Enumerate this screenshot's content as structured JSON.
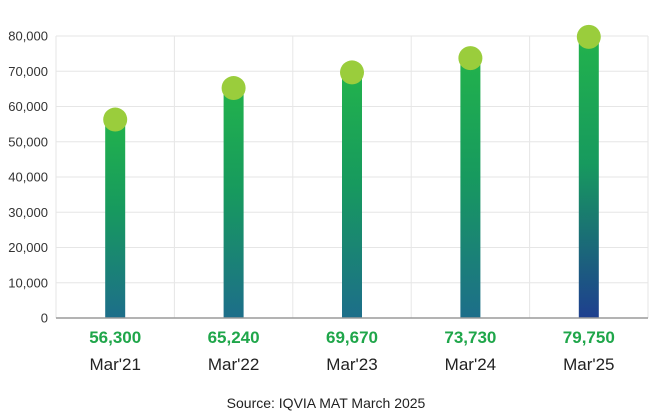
{
  "chart_data": {
    "type": "bar",
    "categories": [
      "Mar'21",
      "Mar'22",
      "Mar'23",
      "Mar'24",
      "Mar'25"
    ],
    "values": [
      56300,
      65240,
      69670,
      73730,
      79750
    ],
    "value_labels": [
      "56,300",
      "65,240",
      "69,670",
      "73,730",
      "79,750"
    ],
    "y_tick_labels": [
      "0",
      "10,000",
      "20,000",
      "30,000",
      "40,000",
      "50,000",
      "60,000",
      "70,000",
      "80,000"
    ],
    "ylim": [
      0,
      80000
    ],
    "ytick_step": 10000,
    "grid": true,
    "legend": "none",
    "title": "",
    "xlabel": "",
    "ylabel": "",
    "source": "Source: IQVIA MAT March 2025",
    "colors": {
      "bar_top": "#22b24c",
      "bar_bottom_light": "#1d6e8a",
      "bar_bottom_dark": "#1e3f8f",
      "marker": "#9acd3c",
      "value_label": "#1fa64a",
      "grid": "#e6e6e6",
      "axis": "#9a9a9a"
    }
  }
}
